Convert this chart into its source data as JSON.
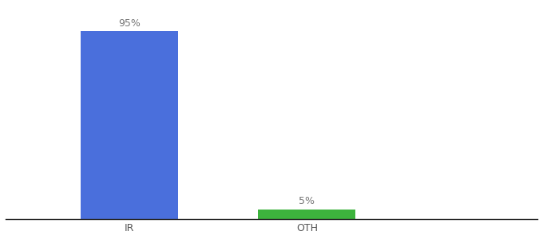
{
  "categories": [
    "IR",
    "OTH"
  ],
  "values": [
    95,
    5
  ],
  "bar_colors": [
    "#4a6fdc",
    "#3db33d"
  ],
  "bar_labels": [
    "95%",
    "5%"
  ],
  "background_color": "#ffffff",
  "text_color": "#777777",
  "label_fontsize": 9,
  "tick_fontsize": 9,
  "ylim": [
    0,
    108
  ],
  "xlim": [
    0,
    3
  ],
  "x_positions": [
    0.7,
    1.7
  ],
  "bar_width": 0.55
}
